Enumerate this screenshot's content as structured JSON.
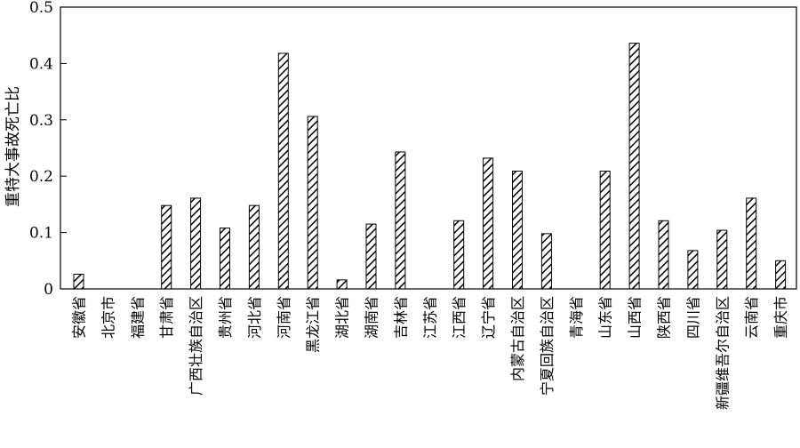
{
  "chart_data": {
    "type": "bar",
    "title": "",
    "xlabel": "",
    "ylabel": "重特大事故死亡比",
    "ylim": [
      0,
      0.5
    ],
    "yticks": [
      "0",
      "0.1",
      "0.2",
      "0.3",
      "0.4",
      "0.5"
    ],
    "grid": false,
    "bar_fill": "diagonal-hatch",
    "categories": [
      "安徽省",
      "北京市",
      "福建省",
      "甘肃省",
      "广西壮族自治区",
      "贵州省",
      "河北省",
      "河南省",
      "黑龙江省",
      "湖北省",
      "湖南省",
      "吉林省",
      "江苏省",
      "江西省",
      "辽宁省",
      "内蒙古自治区",
      "宁夏回族自治区",
      "青海省",
      "山东省",
      "山西省",
      "陕西省",
      "四川省",
      "新疆维吾尔自治区",
      "云南省",
      "重庆市"
    ],
    "values": [
      0.026,
      0,
      0,
      0.148,
      0.161,
      0.108,
      0.148,
      0.418,
      0.306,
      0.016,
      0.115,
      0.243,
      0,
      0.121,
      0.232,
      0.209,
      0.098,
      0,
      0.209,
      0.436,
      0.121,
      0.068,
      0.104,
      0.161,
      0.05
    ]
  }
}
